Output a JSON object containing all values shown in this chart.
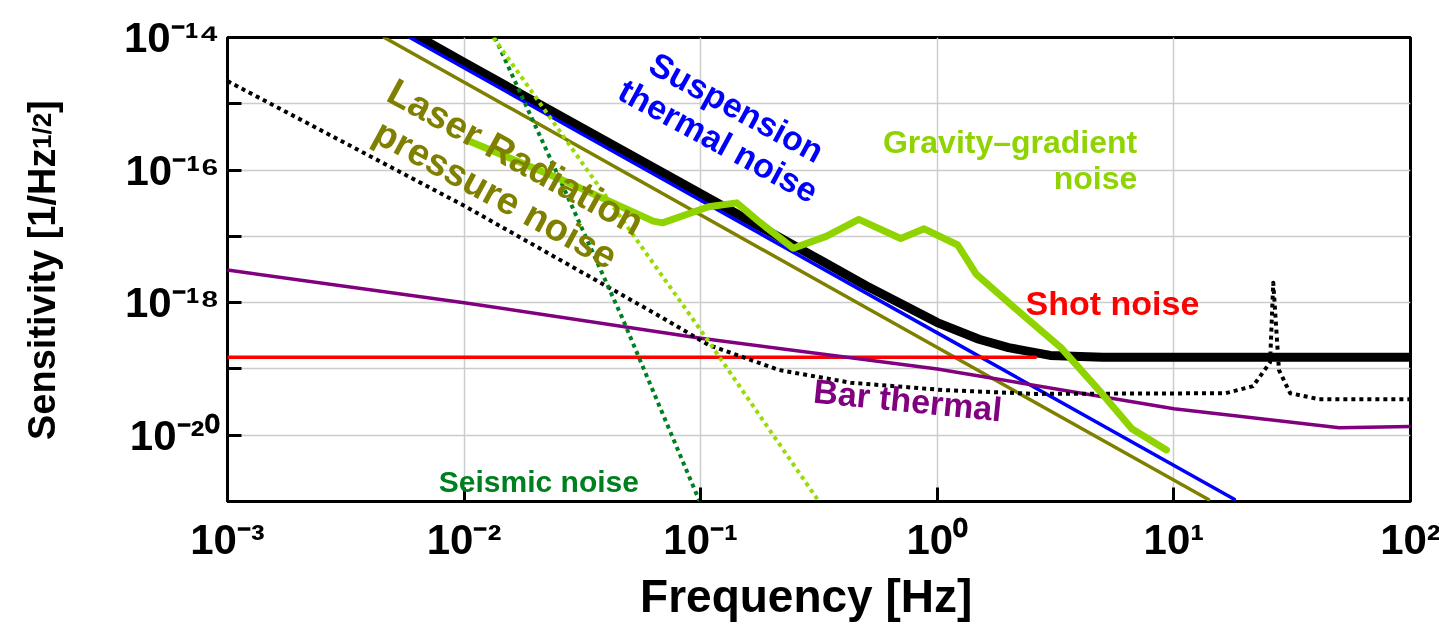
{
  "chart_data": {
    "type": "line",
    "xlabel": "Frequency   [Hz]",
    "ylabel": "Sensitivity [1/Hz$^{1/2}$]",
    "log": "xy",
    "grid": true,
    "legend": false,
    "marker": "none",
    "xlim": [
      0.001,
      100
    ],
    "ylim": [
      1e-21,
      1e-14
    ],
    "xticks": [
      {
        "value": 0.001,
        "label": "10⁻³"
      },
      {
        "value": 0.01,
        "label": "10⁻²"
      },
      {
        "value": 0.1,
        "label": "10⁻¹"
      },
      {
        "value": 1,
        "label": "10⁰"
      },
      {
        "value": 10,
        "label": "10¹"
      },
      {
        "value": 100,
        "label": "10²"
      }
    ],
    "yticks": [
      {
        "value": 1e-21,
        "label": null
      },
      {
        "value": 1e-20,
        "label": "10⁻²⁰"
      },
      {
        "value": 1e-19,
        "label": null
      },
      {
        "value": 1e-18,
        "label": "10⁻¹⁸"
      },
      {
        "value": 1e-17,
        "label": null
      },
      {
        "value": 1e-16,
        "label": "10⁻¹⁶"
      },
      {
        "value": 1e-15,
        "label": null
      },
      {
        "value": 1e-14,
        "label": "10⁻¹⁴"
      }
    ],
    "series": [
      {
        "color": "#000000",
        "line_style": "solid",
        "x": [
          0.0065,
          0.01,
          0.1,
          0.3,
          0.5,
          1,
          1.5,
          2,
          3,
          5,
          100
        ],
        "values": [
          1e-14,
          4.2e-15,
          4.4e-17,
          5e-18,
          1.8e-18,
          5e-19,
          2.8e-19,
          2.1e-19,
          1.6e-19,
          1.5e-19,
          1.5e-19
        ]
      },
      {
        "name": "Suspension\nthermal noise",
        "color": "#0000ff",
        "line_style": "solid",
        "x": [
          0.0059,
          1,
          18
        ],
        "values": [
          1e-14,
          3.5e-19,
          1.08e-21
        ]
      },
      {
        "name": "Laser Radiation\npressure noise",
        "color": "#808000",
        "line_style": "solid",
        "x": [
          0.0046,
          1,
          14
        ],
        "values": [
          1e-14,
          2.1e-19,
          1.07e-21
        ]
      },
      {
        "name": "Shot noise",
        "color": "#ff0000",
        "line_style": "solid",
        "x": [
          0.001,
          2.6
        ],
        "values": [
          1.5e-19,
          1.5e-19
        ]
      },
      {
        "name": "Bar thermal",
        "color": "#800080",
        "line_style": "solid",
        "x": [
          0.001,
          0.01,
          0.1,
          1,
          10,
          50,
          100
        ],
        "values": [
          3.1e-18,
          1e-18,
          2.9e-19,
          1e-19,
          2.5e-20,
          1.3e-20,
          1.35e-20
        ]
      },
      {
        "color": "#000000",
        "line_style": "dotted",
        "x": [
          0.001,
          0.01,
          0.069,
          0.108,
          0.215,
          0.43,
          1.06,
          2.6,
          16.5,
          21.6,
          25.5,
          26.3,
          27.8,
          31,
          41,
          100
        ],
        "values": [
          2.2e-15,
          2.9e-17,
          5.9e-19,
          2.3e-19,
          9.6e-20,
          6.2e-20,
          4.8e-20,
          4.2e-20,
          4.3e-20,
          5.5e-20,
          1.26e-19,
          2e-18,
          9.6e-20,
          4.3e-20,
          3.5e-20,
          3.5e-20
        ]
      },
      {
        "name": "Seismic noise",
        "color": "#007f1f",
        "line_style": "dotted",
        "x": [
          0.0135,
          0.026,
          0.0465,
          0.099
        ],
        "values": [
          1e-14,
          6e-17,
          6e-19,
          1e-21
        ]
      },
      {
        "color": "#99dd00",
        "line_style": "dotted",
        "x": [
          0.0133,
          0.108,
          0.316
        ],
        "values": [
          1e-14,
          2.6e-19,
          1e-21
        ]
      },
      {
        "name": "Gravity–gradient\nnoise",
        "color": "#8fd400",
        "line_style": "solid",
        "x": [
          0.0106,
          0.026,
          0.063,
          0.069,
          0.108,
          0.142,
          0.179,
          0.246,
          0.339,
          0.466,
          0.7,
          0.88,
          1.22,
          1.46,
          2.11,
          3.33,
          4.82,
          6.64,
          9.3
        ],
        "values": [
          2.7e-16,
          7.1e-17,
          1.7e-17,
          1.6e-17,
          2.8e-17,
          3.2e-17,
          1.6e-17,
          6.6e-18,
          1e-17,
          1.8e-17,
          9.3e-18,
          1.3e-17,
          7.4e-18,
          2.7e-18,
          8.5e-19,
          2.1e-19,
          4.8e-20,
          1.25e-20,
          6e-21
        ]
      }
    ]
  }
}
